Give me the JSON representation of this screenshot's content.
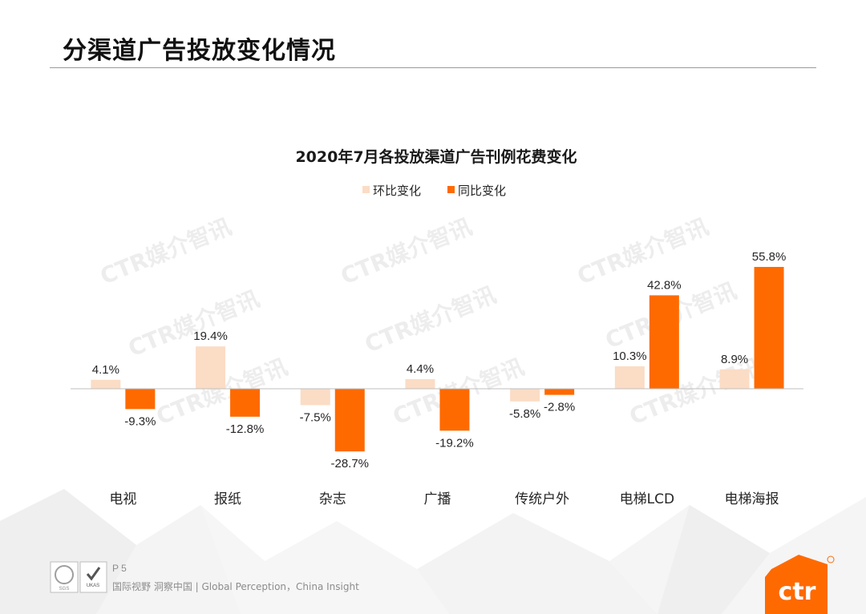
{
  "page": {
    "title": "分渠道广告投放变化情况",
    "page_number": "P 5",
    "slogan": "国际视野  洞察中国 |  Global Perception，China Insight",
    "brand": "ctr",
    "watermark": "CTR媒介智讯",
    "cert_labels": [
      "SGS",
      "UKAS"
    ]
  },
  "colors": {
    "mom": "#fbdcc5",
    "yoy": "#ff6a00",
    "baseline": "#bfbfbf",
    "text": "#262626",
    "brand": "#ff6a00"
  },
  "chart_data": {
    "type": "bar",
    "title": "2020年7月各投放渠道广告刊例花费变化",
    "categories": [
      "电视",
      "报纸",
      "杂志",
      "广播",
      "传统户外",
      "电梯LCD",
      "电梯海报"
    ],
    "series": [
      {
        "name": "环比变化",
        "values": [
          4.1,
          19.4,
          -7.5,
          4.4,
          -5.8,
          10.3,
          8.9
        ],
        "labels": [
          "4.1%",
          "19.4%",
          "-7.5%",
          "4.4%",
          "-5.8%",
          "10.3%",
          "8.9%"
        ]
      },
      {
        "name": "同比变化",
        "values": [
          -9.3,
          -12.8,
          -28.7,
          -19.2,
          -2.8,
          42.8,
          55.8
        ],
        "labels": [
          "-9.3%",
          "-12.8%",
          "-28.7%",
          "-19.2%",
          "-2.8%",
          "42.8%",
          "55.8%"
        ]
      }
    ],
    "ylim": [
      -36,
      60
    ],
    "grid": false,
    "legend": "top"
  }
}
